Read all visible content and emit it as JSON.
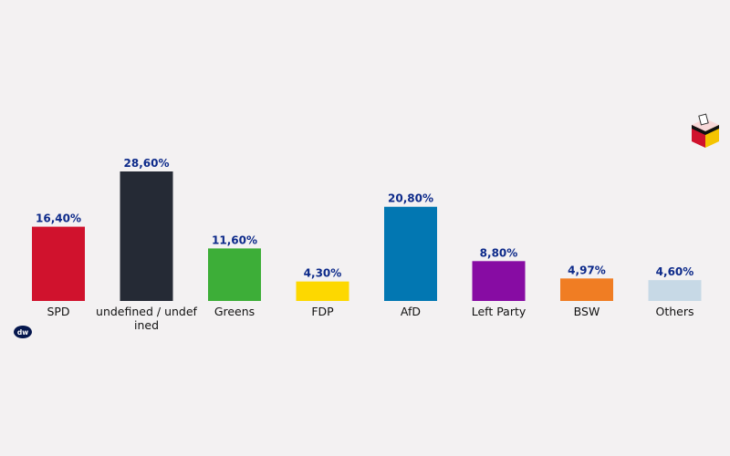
{
  "chart_data": {
    "type": "bar",
    "categories": [
      "SPD",
      "undefined / undefined",
      "Greens",
      "FDP",
      "AfD",
      "Left Party",
      "BSW",
      "Others"
    ],
    "values": [
      16.4,
      28.6,
      11.6,
      4.3,
      20.8,
      8.8,
      4.97,
      4.6
    ],
    "value_labels": [
      "16,40%",
      "28,60%",
      "11,60%",
      "4,30%",
      "20,80%",
      "8,80%",
      "4,97%",
      "4,60%"
    ],
    "colors": [
      "#d0122d",
      "#252a35",
      "#3dae38",
      "#fdd800",
      "#0277b2",
      "#870ca3",
      "#f07d23",
      "#c7d9e6"
    ],
    "label_color": "#0d2a8a",
    "ylim": [
      0,
      28.6
    ],
    "grid": false,
    "legend": "none"
  },
  "icons": {
    "logo": "dw-logo-icon",
    "corner": "ballot-box-icon"
  },
  "logo_text": "DW"
}
